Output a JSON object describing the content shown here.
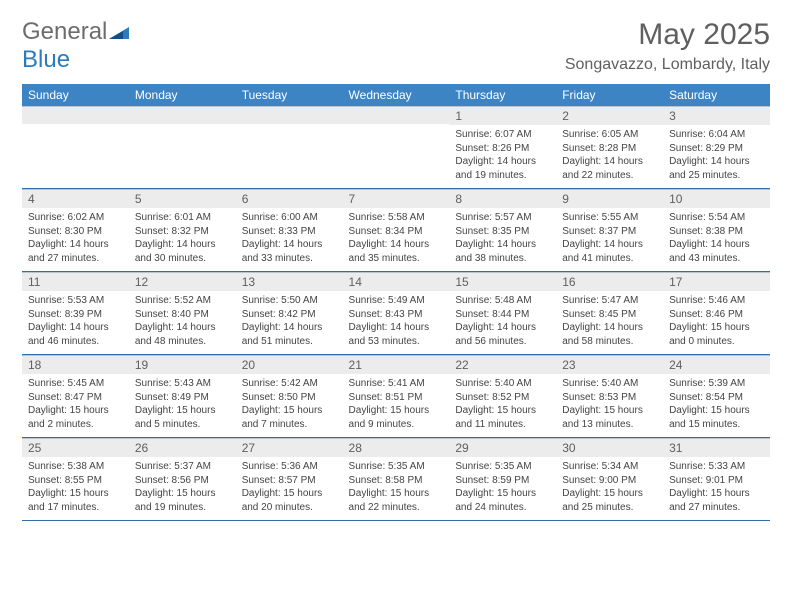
{
  "brand": {
    "part1": "General",
    "part2": "Blue"
  },
  "title": "May 2025",
  "subtitle": "Songavazzo, Lombardy, Italy",
  "colors": {
    "header_bg": "#3d84c4",
    "header_text": "#ffffff",
    "daynum_bg": "#ececec",
    "text": "#5f5f5f",
    "rule": "#2f6ea7",
    "logo_blue": "#2b7bbd"
  },
  "day_labels": [
    "Sunday",
    "Monday",
    "Tuesday",
    "Wednesday",
    "Thursday",
    "Friday",
    "Saturday"
  ],
  "weeks": [
    [
      {
        "n": "",
        "sr": "",
        "ss": "",
        "dl": ""
      },
      {
        "n": "",
        "sr": "",
        "ss": "",
        "dl": ""
      },
      {
        "n": "",
        "sr": "",
        "ss": "",
        "dl": ""
      },
      {
        "n": "",
        "sr": "",
        "ss": "",
        "dl": ""
      },
      {
        "n": "1",
        "sr": "Sunrise: 6:07 AM",
        "ss": "Sunset: 8:26 PM",
        "dl": "Daylight: 14 hours and 19 minutes."
      },
      {
        "n": "2",
        "sr": "Sunrise: 6:05 AM",
        "ss": "Sunset: 8:28 PM",
        "dl": "Daylight: 14 hours and 22 minutes."
      },
      {
        "n": "3",
        "sr": "Sunrise: 6:04 AM",
        "ss": "Sunset: 8:29 PM",
        "dl": "Daylight: 14 hours and 25 minutes."
      }
    ],
    [
      {
        "n": "4",
        "sr": "Sunrise: 6:02 AM",
        "ss": "Sunset: 8:30 PM",
        "dl": "Daylight: 14 hours and 27 minutes."
      },
      {
        "n": "5",
        "sr": "Sunrise: 6:01 AM",
        "ss": "Sunset: 8:32 PM",
        "dl": "Daylight: 14 hours and 30 minutes."
      },
      {
        "n": "6",
        "sr": "Sunrise: 6:00 AM",
        "ss": "Sunset: 8:33 PM",
        "dl": "Daylight: 14 hours and 33 minutes."
      },
      {
        "n": "7",
        "sr": "Sunrise: 5:58 AM",
        "ss": "Sunset: 8:34 PM",
        "dl": "Daylight: 14 hours and 35 minutes."
      },
      {
        "n": "8",
        "sr": "Sunrise: 5:57 AM",
        "ss": "Sunset: 8:35 PM",
        "dl": "Daylight: 14 hours and 38 minutes."
      },
      {
        "n": "9",
        "sr": "Sunrise: 5:55 AM",
        "ss": "Sunset: 8:37 PM",
        "dl": "Daylight: 14 hours and 41 minutes."
      },
      {
        "n": "10",
        "sr": "Sunrise: 5:54 AM",
        "ss": "Sunset: 8:38 PM",
        "dl": "Daylight: 14 hours and 43 minutes."
      }
    ],
    [
      {
        "n": "11",
        "sr": "Sunrise: 5:53 AM",
        "ss": "Sunset: 8:39 PM",
        "dl": "Daylight: 14 hours and 46 minutes."
      },
      {
        "n": "12",
        "sr": "Sunrise: 5:52 AM",
        "ss": "Sunset: 8:40 PM",
        "dl": "Daylight: 14 hours and 48 minutes."
      },
      {
        "n": "13",
        "sr": "Sunrise: 5:50 AM",
        "ss": "Sunset: 8:42 PM",
        "dl": "Daylight: 14 hours and 51 minutes."
      },
      {
        "n": "14",
        "sr": "Sunrise: 5:49 AM",
        "ss": "Sunset: 8:43 PM",
        "dl": "Daylight: 14 hours and 53 minutes."
      },
      {
        "n": "15",
        "sr": "Sunrise: 5:48 AM",
        "ss": "Sunset: 8:44 PM",
        "dl": "Daylight: 14 hours and 56 minutes."
      },
      {
        "n": "16",
        "sr": "Sunrise: 5:47 AM",
        "ss": "Sunset: 8:45 PM",
        "dl": "Daylight: 14 hours and 58 minutes."
      },
      {
        "n": "17",
        "sr": "Sunrise: 5:46 AM",
        "ss": "Sunset: 8:46 PM",
        "dl": "Daylight: 15 hours and 0 minutes."
      }
    ],
    [
      {
        "n": "18",
        "sr": "Sunrise: 5:45 AM",
        "ss": "Sunset: 8:47 PM",
        "dl": "Daylight: 15 hours and 2 minutes."
      },
      {
        "n": "19",
        "sr": "Sunrise: 5:43 AM",
        "ss": "Sunset: 8:49 PM",
        "dl": "Daylight: 15 hours and 5 minutes."
      },
      {
        "n": "20",
        "sr": "Sunrise: 5:42 AM",
        "ss": "Sunset: 8:50 PM",
        "dl": "Daylight: 15 hours and 7 minutes."
      },
      {
        "n": "21",
        "sr": "Sunrise: 5:41 AM",
        "ss": "Sunset: 8:51 PM",
        "dl": "Daylight: 15 hours and 9 minutes."
      },
      {
        "n": "22",
        "sr": "Sunrise: 5:40 AM",
        "ss": "Sunset: 8:52 PM",
        "dl": "Daylight: 15 hours and 11 minutes."
      },
      {
        "n": "23",
        "sr": "Sunrise: 5:40 AM",
        "ss": "Sunset: 8:53 PM",
        "dl": "Daylight: 15 hours and 13 minutes."
      },
      {
        "n": "24",
        "sr": "Sunrise: 5:39 AM",
        "ss": "Sunset: 8:54 PM",
        "dl": "Daylight: 15 hours and 15 minutes."
      }
    ],
    [
      {
        "n": "25",
        "sr": "Sunrise: 5:38 AM",
        "ss": "Sunset: 8:55 PM",
        "dl": "Daylight: 15 hours and 17 minutes."
      },
      {
        "n": "26",
        "sr": "Sunrise: 5:37 AM",
        "ss": "Sunset: 8:56 PM",
        "dl": "Daylight: 15 hours and 19 minutes."
      },
      {
        "n": "27",
        "sr": "Sunrise: 5:36 AM",
        "ss": "Sunset: 8:57 PM",
        "dl": "Daylight: 15 hours and 20 minutes."
      },
      {
        "n": "28",
        "sr": "Sunrise: 5:35 AM",
        "ss": "Sunset: 8:58 PM",
        "dl": "Daylight: 15 hours and 22 minutes."
      },
      {
        "n": "29",
        "sr": "Sunrise: 5:35 AM",
        "ss": "Sunset: 8:59 PM",
        "dl": "Daylight: 15 hours and 24 minutes."
      },
      {
        "n": "30",
        "sr": "Sunrise: 5:34 AM",
        "ss": "Sunset: 9:00 PM",
        "dl": "Daylight: 15 hours and 25 minutes."
      },
      {
        "n": "31",
        "sr": "Sunrise: 5:33 AM",
        "ss": "Sunset: 9:01 PM",
        "dl": "Daylight: 15 hours and 27 minutes."
      }
    ]
  ]
}
